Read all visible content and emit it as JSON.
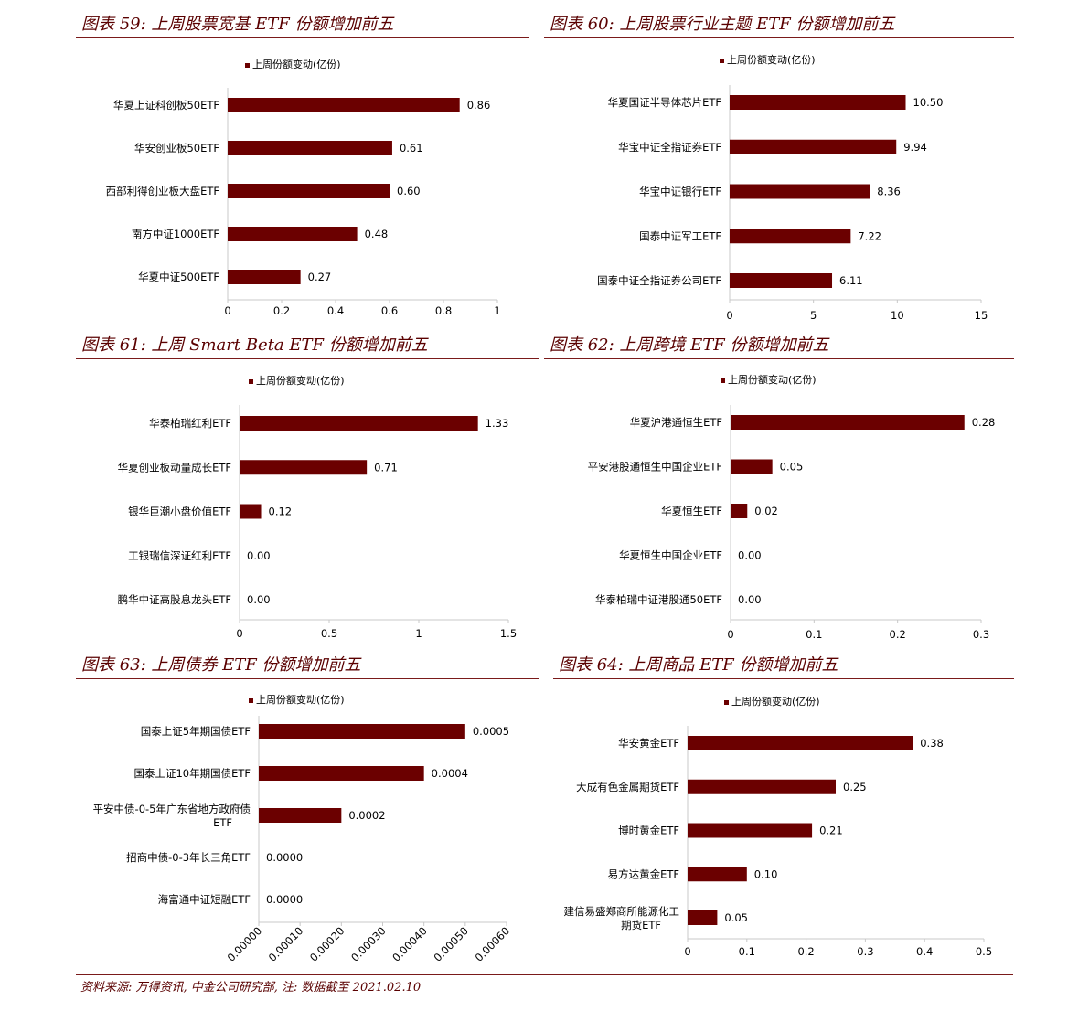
{
  "panels": [
    {
      "title": "图表 59:  上周股票宽基 ETF 份额增加前五"
    },
    {
      "title": "图表 60:  上周股票行业主题 ETF 份额增加前五"
    },
    {
      "title": "图表 61:  上周 Smart Beta ETF 份额增加前五"
    },
    {
      "title": "图表 62:  上周跨境 ETF 份额增加前五"
    },
    {
      "title": "图表 63:  上周债券 ETF 份额增加前五"
    },
    {
      "title": "图表 64:  上周商品 ETF 份额增加前五"
    }
  ],
  "footer": {
    "note": "资料来源:  万得资讯,  中金公司研究部,  注:  数据截至 2021.02.10"
  },
  "colors": {
    "bar": "#6b0000",
    "accent": "#5a0000"
  },
  "chart_data": [
    {
      "type": "bar",
      "orientation": "horizontal",
      "series": [
        {
          "name": "上周份额变动(亿份)",
          "values": [
            0.86,
            0.61,
            0.6,
            0.48,
            0.27
          ]
        }
      ],
      "categories": [
        "华夏上证科创板50ETF",
        "华安创业板50ETF",
        "西部利得创业板大盘ETF",
        "南方中证1000ETF",
        "华夏中证500ETF"
      ],
      "value_labels": [
        "0.86",
        "0.61",
        "0.60",
        "0.48",
        "0.27"
      ],
      "xlim": [
        0,
        1
      ],
      "xticks": [
        "0",
        "0.2",
        "0.4",
        "0.6",
        "0.8",
        "1"
      ],
      "legend": "top"
    },
    {
      "type": "bar",
      "orientation": "horizontal",
      "series": [
        {
          "name": "上周份额变动(亿份)",
          "values": [
            10.5,
            9.94,
            8.36,
            7.22,
            6.11
          ]
        }
      ],
      "categories": [
        "华夏国证半导体芯片ETF",
        "华宝中证全指证券ETF",
        "华宝中证银行ETF",
        "国泰中证军工ETF",
        "国泰中证全指证券公司ETF"
      ],
      "value_labels": [
        "10.50",
        "9.94",
        "8.36",
        "7.22",
        "6.11"
      ],
      "xlim": [
        0,
        15
      ],
      "xticks": [
        "0",
        "5",
        "10",
        "15"
      ],
      "legend": "top"
    },
    {
      "type": "bar",
      "orientation": "horizontal",
      "series": [
        {
          "name": "上周份额变动(亿份)",
          "values": [
            1.33,
            0.71,
            0.12,
            0.0,
            0.0
          ]
        }
      ],
      "categories": [
        "华泰柏瑞红利ETF",
        "华夏创业板动量成长ETF",
        "银华巨潮小盘价值ETF",
        "工银瑞信深证红利ETF",
        "鹏华中证高股息龙头ETF"
      ],
      "value_labels": [
        "1.33",
        "0.71",
        "0.12",
        "0.00",
        "0.00"
      ],
      "xlim": [
        0,
        1.5
      ],
      "xticks": [
        "0",
        "0.5",
        "1",
        "1.5"
      ],
      "legend": "top"
    },
    {
      "type": "bar",
      "orientation": "horizontal",
      "series": [
        {
          "name": "上周份额变动(亿份)",
          "values": [
            0.28,
            0.05,
            0.02,
            0.0,
            0.0
          ]
        }
      ],
      "categories": [
        "华夏沪港通恒生ETF",
        "平安港股通恒生中国企业ETF",
        "华夏恒生ETF",
        "华夏恒生中国企业ETF",
        "华泰柏瑞中证港股通50ETF"
      ],
      "value_labels": [
        "0.28",
        "0.05",
        "0.02",
        "0.00",
        "0.00"
      ],
      "xlim": [
        0,
        0.3
      ],
      "xticks": [
        "0",
        "0.1",
        "0.2",
        "0.3"
      ],
      "legend": "top"
    },
    {
      "type": "bar",
      "orientation": "horizontal",
      "series": [
        {
          "name": "上周份额变动(亿份)",
          "values": [
            0.0005,
            0.0004,
            0.0002,
            0.0,
            0.0
          ]
        }
      ],
      "categories": [
        [
          "国泰上证5年期国债ETF"
        ],
        [
          "国泰上证10年期国债ETF"
        ],
        [
          "平安中债-0-5年广东省地方政府债",
          "ETF"
        ],
        [
          "招商中债-0-3年长三角ETF"
        ],
        [
          "海富通中证短融ETF"
        ]
      ],
      "value_labels": [
        "0.0005",
        "0.0004",
        "0.0002",
        "0.0000",
        "0.0000"
      ],
      "xlim": [
        0,
        0.0006
      ],
      "xticks": [
        "0.00000",
        "0.00010",
        "0.00020",
        "0.00030",
        "0.00040",
        "0.00050",
        "0.00060"
      ],
      "xtick_rotation": -45,
      "legend": "top"
    },
    {
      "type": "bar",
      "orientation": "horizontal",
      "series": [
        {
          "name": "上周份额变动(亿份)",
          "values": [
            0.38,
            0.25,
            0.21,
            0.1,
            0.05
          ]
        }
      ],
      "categories": [
        [
          "华安黄金ETF"
        ],
        [
          "大成有色金属期货ETF"
        ],
        [
          "博时黄金ETF"
        ],
        [
          "易方达黄金ETF"
        ],
        [
          "建信易盛郑商所能源化工",
          "期货ETF"
        ]
      ],
      "value_labels": [
        "0.38",
        "0.25",
        "0.21",
        "0.10",
        "0.05"
      ],
      "xlim": [
        0,
        0.5
      ],
      "xticks": [
        "0",
        "0.1",
        "0.2",
        "0.3",
        "0.4",
        "0.5"
      ],
      "legend": "top"
    }
  ]
}
